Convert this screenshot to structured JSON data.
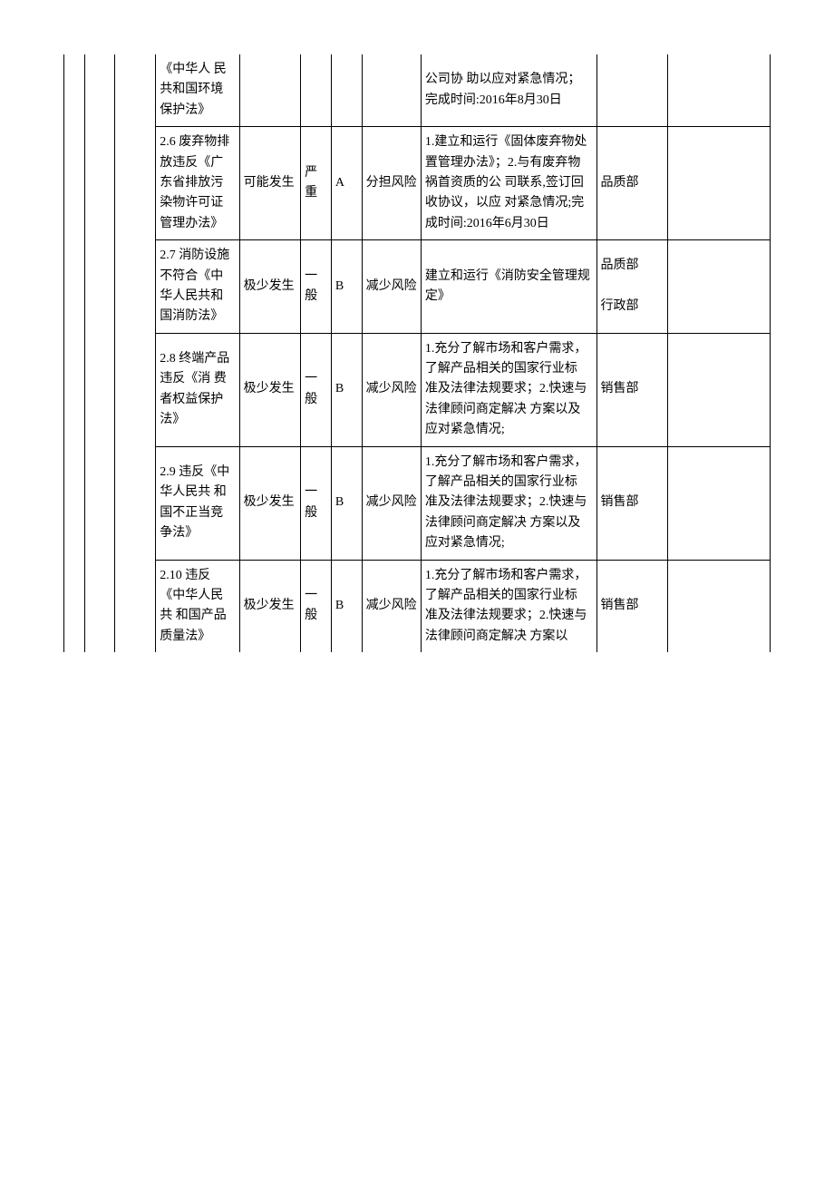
{
  "table": {
    "colors": {
      "border": "#000000",
      "background": "#ffffff",
      "text": "#000000"
    },
    "font_size_pt": 10.5,
    "rows": [
      {
        "desc": "《中华人 民共和国环境保护法》",
        "prob": "",
        "sev": "",
        "grade": "",
        "risk": "",
        "measure": "公司协 助以应对紧急情况；完成时间:2016年8月30日",
        "dept": "",
        "last": "",
        "continues_from_above": true,
        "continues_below": false
      },
      {
        "desc": "2.6 废弃物排放违反《广 东省排放污染物许可证管理办法》",
        "prob": "可能发生",
        "sev": "严重",
        "grade": "A",
        "risk": "分担风险",
        "measure": "1.建立和运行《固体废弃物处置管理办法》；2.与有废弃物祸首资质的公 司联系,签订回收协议，以应 对紧急情况;完成时间:2016年6月30日",
        "dept": "品质部",
        "last": ""
      },
      {
        "desc": "2.7 消防设施不符合《中 华人民共和国消防法》",
        "prob": "极少发生",
        "sev": "一般",
        "grade": "B",
        "risk": "减少风险",
        "measure": "建立和运行《消防安全管理规 定》",
        "dept": "品质部\n\n行政部",
        "last": ""
      },
      {
        "desc": "2.8 终端产品违反《消 费者权益保护法》",
        "prob": "极少发生",
        "sev": "一般",
        "grade": "B",
        "risk": "减少风险",
        "measure": "1.充分了解市场和客户需求， 了解产品相关的国家行业标 准及法律法规要求；2.快速与法律顾问商定解决 方案以及应对紧急情况;",
        "dept": "销售部",
        "last": ""
      },
      {
        "desc": "2.9 违反《中华人民共 和国不正当竞争法》",
        "prob": "极少发生",
        "sev": "一般",
        "grade": "B",
        "risk": "减少风险",
        "measure": "1.充分了解市场和客户需求， 了解产品相关的国家行业标 准及法律法规要求；2.快速与法律顾问商定解决 方案以及应对紧急情况;",
        "dept": "销售部",
        "last": ""
      },
      {
        "desc": "2.10 违反《中华人民共 和国产品质量法》",
        "prob": "极少发生",
        "sev": "一般",
        "grade": "B",
        "risk": "减少风险",
        "measure": "1.充分了解市场和客户需求， 了解产品相关的国家行业标 准及法律法规要求；2.快速与法律顾问商定解决 方案以",
        "dept": "销售部",
        "last": "",
        "continues_below": true
      }
    ]
  }
}
